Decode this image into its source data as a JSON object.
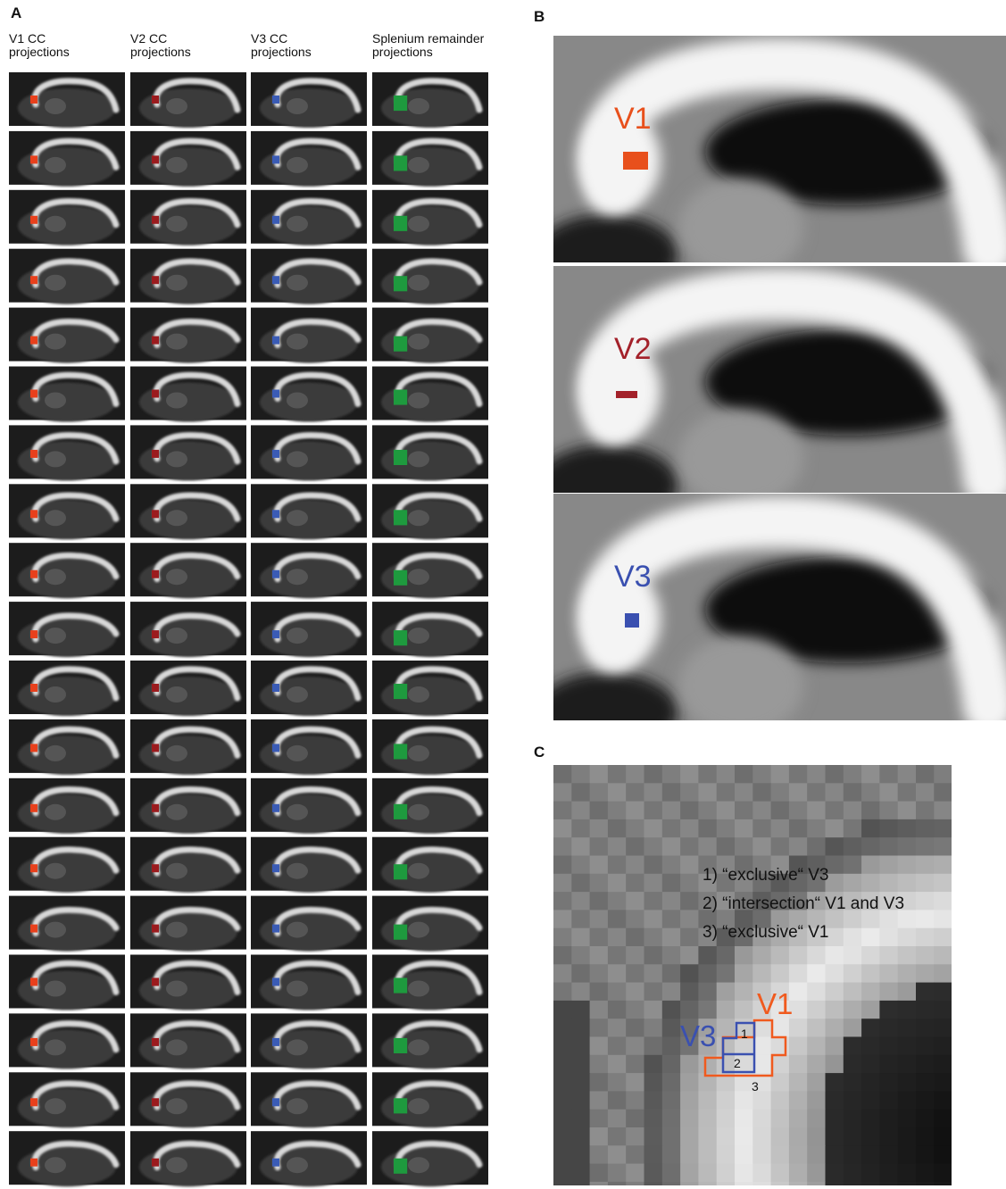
{
  "panel_a": {
    "label": "A",
    "columns": [
      [
        "V1 CC",
        "projections"
      ],
      [
        "V2 CC",
        "projections"
      ],
      [
        "V3 CC",
        "projections"
      ],
      [
        "Splenium remainder",
        "projections"
      ]
    ]
  },
  "panel_b": {
    "label": "B",
    "labels": [
      "V1",
      "V2",
      "V3"
    ]
  },
  "panel_c": {
    "label": "C",
    "legend": [
      "1) “exclusive“ V3",
      "2) “intersection“ V1 and V3",
      "3) “exclusive“ V1"
    ],
    "outline_labels": [
      "V1",
      "V3"
    ],
    "regions": [
      "1",
      "2",
      "3"
    ]
  }
}
